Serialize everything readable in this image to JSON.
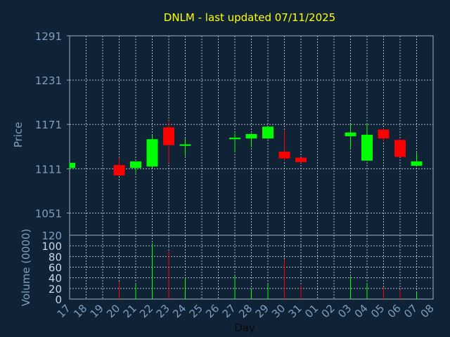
{
  "chart_data": [
    {
      "type": "candlestick",
      "title": "DNLM - last updated 07/11/2025",
      "ylabel": "Price",
      "ylim": [
        1021,
        1291
      ],
      "yticks": [
        1291,
        1231,
        1171,
        1111,
        1051
      ],
      "categories": [
        "17",
        "18",
        "19",
        "20",
        "21",
        "22",
        "23",
        "24",
        "25",
        "26",
        "27",
        "28",
        "29",
        "30",
        "31",
        "01",
        "02",
        "03",
        "04",
        "05",
        "06",
        "07",
        "08"
      ],
      "candles": [
        {
          "day": "17",
          "open": 1112,
          "high": 1119,
          "low": 1110,
          "close": 1119
        },
        {
          "day": "20",
          "open": 1116,
          "high": 1126,
          "low": 1101,
          "close": 1102
        },
        {
          "day": "21",
          "open": 1112,
          "high": 1121,
          "low": 1105,
          "close": 1121
        },
        {
          "day": "22",
          "open": 1114,
          "high": 1157,
          "low": 1112,
          "close": 1151
        },
        {
          "day": "23",
          "open": 1167,
          "high": 1176,
          "low": 1119,
          "close": 1143
        },
        {
          "day": "24",
          "open": 1142,
          "high": 1152,
          "low": 1128,
          "close": 1144
        },
        {
          "day": "27",
          "open": 1151,
          "high": 1159,
          "low": 1133,
          "close": 1153
        },
        {
          "day": "28",
          "open": 1152,
          "high": 1159,
          "low": 1140,
          "close": 1158
        },
        {
          "day": "29",
          "open": 1152,
          "high": 1167,
          "low": 1151,
          "close": 1168
        },
        {
          "day": "30",
          "open": 1134,
          "high": 1163,
          "low": 1122,
          "close": 1125
        },
        {
          "day": "31",
          "open": 1126,
          "high": 1126,
          "low": 1119,
          "close": 1120
        },
        {
          "day": "03",
          "open": 1155,
          "high": 1171,
          "low": 1138,
          "close": 1160
        },
        {
          "day": "04",
          "open": 1122,
          "high": 1173,
          "low": 1122,
          "close": 1157
        },
        {
          "day": "05",
          "open": 1164,
          "high": 1165,
          "low": 1148,
          "close": 1152
        },
        {
          "day": "06",
          "open": 1150,
          "high": 1150,
          "low": 1127,
          "close": 1127
        },
        {
          "day": "07",
          "open": 1115,
          "high": 1133,
          "low": 1115,
          "close": 1121
        }
      ],
      "colors": {
        "up": "#00ff00",
        "down": "#ff0000"
      }
    },
    {
      "type": "bar",
      "xlabel": "Day",
      "ylabel": "Volume (0000)",
      "ylim": [
        0,
        120
      ],
      "yticks": [
        120,
        100,
        80,
        60,
        40,
        20,
        0
      ],
      "volumes": [
        {
          "day": "20",
          "value": 33,
          "direction": "down"
        },
        {
          "day": "21",
          "value": 28,
          "direction": "up"
        },
        {
          "day": "22",
          "value": 105,
          "direction": "up"
        },
        {
          "day": "23",
          "value": 90,
          "direction": "down"
        },
        {
          "day": "24",
          "value": 40,
          "direction": "up"
        },
        {
          "day": "27",
          "value": 45,
          "direction": "up"
        },
        {
          "day": "28",
          "value": 18,
          "direction": "up"
        },
        {
          "day": "29",
          "value": 28,
          "direction": "up"
        },
        {
          "day": "30",
          "value": 75,
          "direction": "down"
        },
        {
          "day": "31",
          "value": 26,
          "direction": "down"
        },
        {
          "day": "03",
          "value": 42,
          "direction": "up"
        },
        {
          "day": "04",
          "value": 30,
          "direction": "up"
        },
        {
          "day": "05",
          "value": 22,
          "direction": "down"
        },
        {
          "day": "06",
          "value": 18,
          "direction": "down"
        },
        {
          "day": "07",
          "value": 12,
          "direction": "up"
        }
      ]
    }
  ]
}
